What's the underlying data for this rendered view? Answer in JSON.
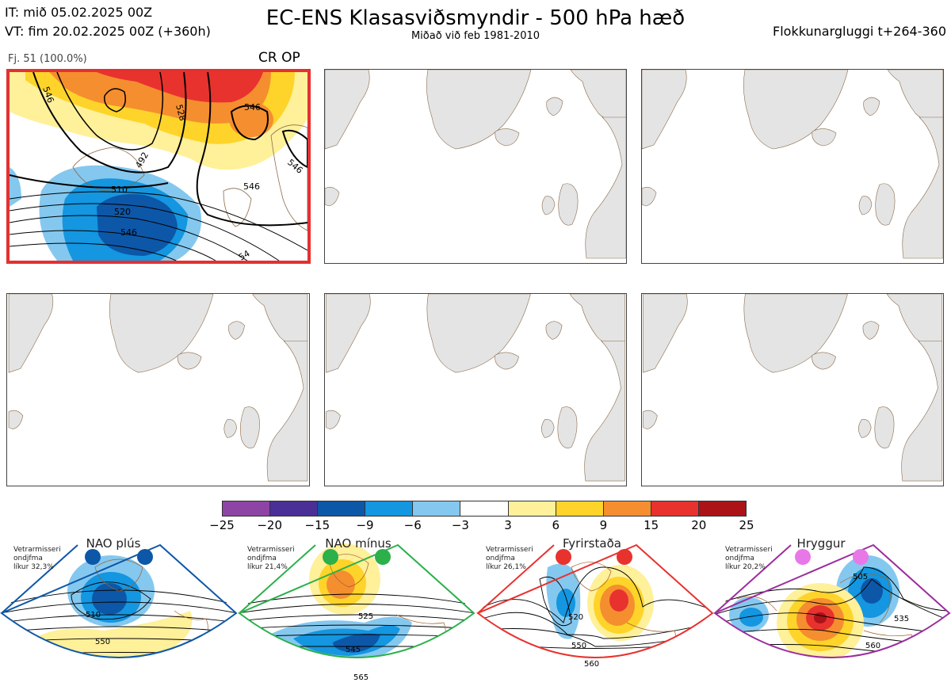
{
  "header": {
    "it_line": "IT: mið 05.02.2025 00Z",
    "vt_line": "VT: fim 20.02.2025 00Z  (+360h)",
    "title": "EC-ENS Klasasviðsmyndir - 500 hPa hæð",
    "subtitle": "Miðað við feb 1981-2010",
    "window": "Flokkunargluggi t+264-360"
  },
  "cluster": {
    "count_label": "Fj. 51 (100.0%)",
    "tag": "CR OP",
    "contour_labels": [
      "510",
      "520",
      "528",
      "546",
      "492",
      "546",
      "546",
      "546",
      "546",
      "54"
    ]
  },
  "colorbar": {
    "colors": [
      "#8e44a4",
      "#4a2f96",
      "#0d57a8",
      "#1496e0",
      "#84c8ef",
      "#ffffff",
      "#fff09a",
      "#fed42a",
      "#f58e2f",
      "#e8322e",
      "#ab1318"
    ],
    "ticks": [
      "−25",
      "−20",
      "−15",
      "−9",
      "−6",
      "−3",
      "3",
      "6",
      "9",
      "15",
      "20",
      "25"
    ]
  },
  "regimes": [
    {
      "name": "NAO plús",
      "info": [
        "Vetrarmisseri",
        "ondjfma",
        "líkur 32,3%"
      ],
      "color": "#0d57a8",
      "labels": [
        "510",
        "550"
      ]
    },
    {
      "name": "NAO mínus",
      "info": [
        "Vetrarmisseri",
        "ondjfma",
        "líkur 21,4%"
      ],
      "color": "#2bb04a",
      "labels": [
        "525",
        "545",
        "565"
      ]
    },
    {
      "name": "Fyrirstaða",
      "info": [
        "Vetrarmisseri",
        "ondjfma",
        "líkur 26,1%"
      ],
      "color": "#e8322e",
      "labels": [
        "520",
        "550",
        "560"
      ]
    },
    {
      "name": "Hryggur",
      "info": [
        "Vetrarmisseri",
        "ondjfma",
        "líkur 20,2%"
      ],
      "color": "#9b2d9e",
      "labels": [
        "505",
        "535",
        "560"
      ]
    }
  ]
}
